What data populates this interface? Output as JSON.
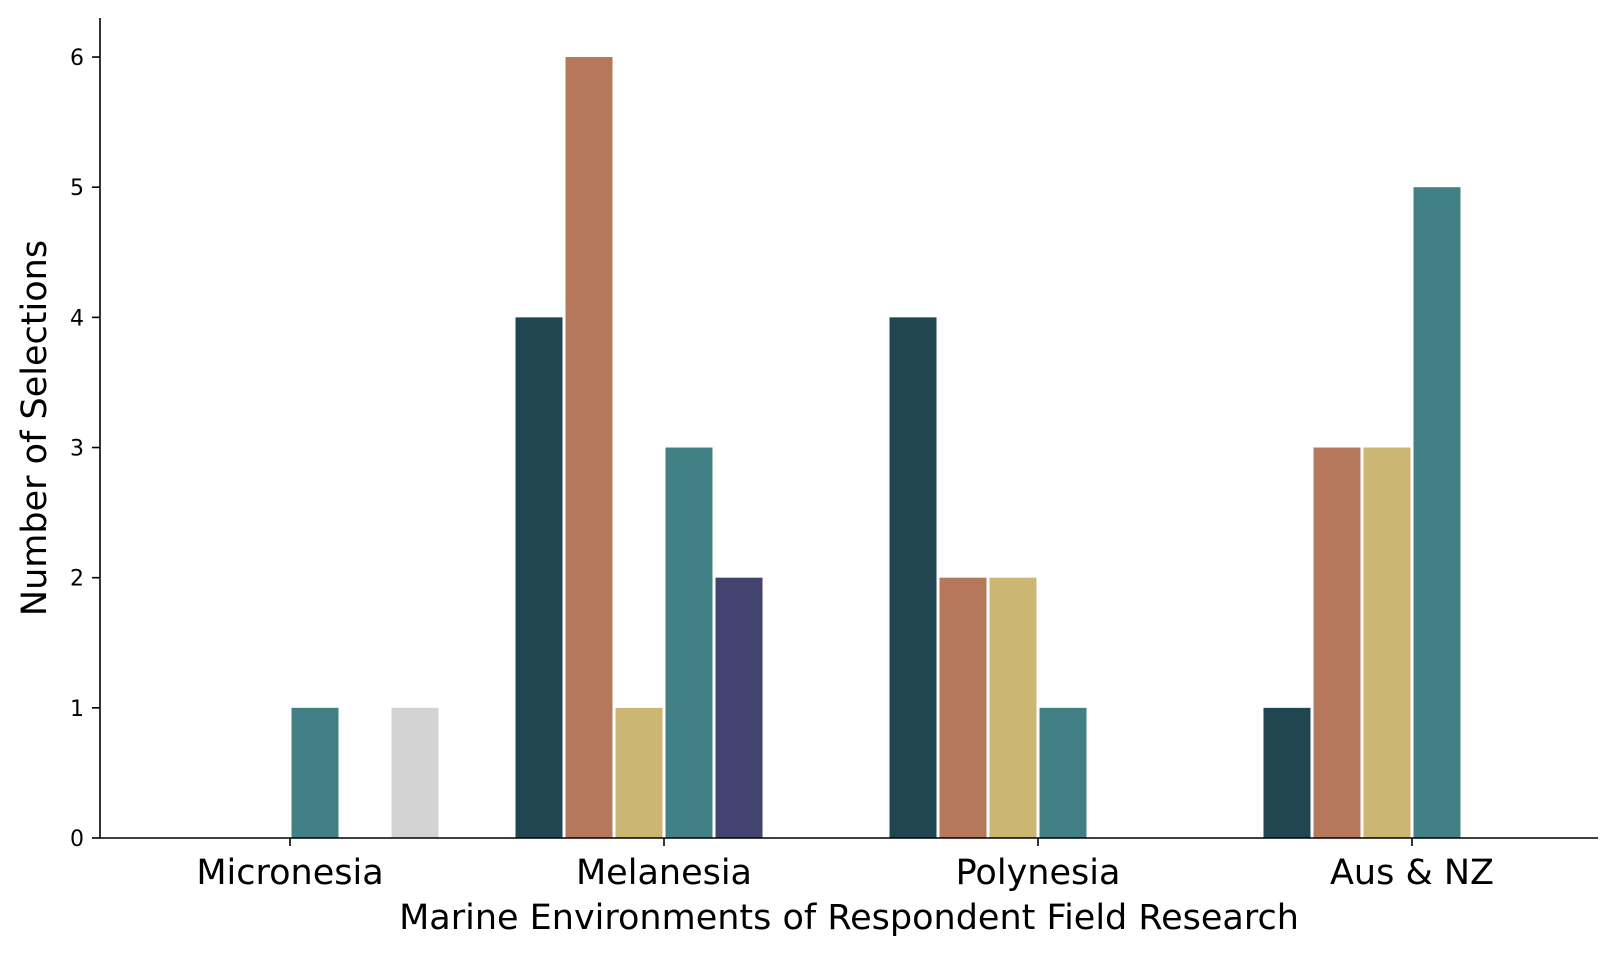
{
  "chart_data": {
    "type": "bar",
    "categories": [
      "Micronesia",
      "Melanesia",
      "Polynesia",
      "Aus & NZ"
    ],
    "series": [
      {
        "values": [
          0,
          4,
          4,
          1
        ]
      },
      {
        "values": [
          0,
          6,
          2,
          3
        ]
      },
      {
        "values": [
          0,
          1,
          2,
          3
        ]
      },
      {
        "values": [
          1,
          3,
          1,
          5
        ]
      },
      {
        "values": [
          0,
          2,
          0,
          0
        ]
      },
      {
        "values": [
          1,
          0,
          0,
          0
        ]
      }
    ],
    "colors": [
      "#204651",
      "#b5785a",
      "#ccb673",
      "#418186",
      "#42436f",
      "#d3d3d3"
    ],
    "xlabel": "Marine Environments of Respondent Field Research",
    "ylabel": "Number of Selections",
    "ylim": [
      0,
      6.3
    ],
    "yticks": [
      0,
      1,
      2,
      3,
      4,
      5,
      6
    ],
    "grid": false,
    "legend": "none"
  }
}
